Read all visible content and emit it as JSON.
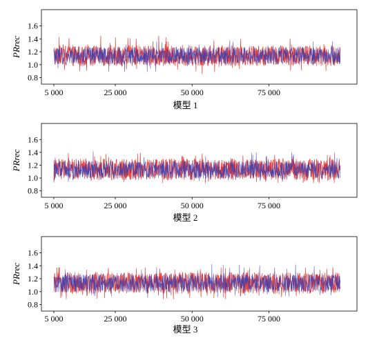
{
  "chart_data": [
    {
      "type": "line",
      "title": "模型 1",
      "xlabel": "模型 1",
      "ylabel": "PRrec",
      "x_range": [
        5000,
        100000
      ],
      "ylim": [
        0.7,
        1.85
      ],
      "xticks": [
        5000,
        25000,
        50000,
        75000
      ],
      "xtick_labels": [
        "5 000",
        "25 000",
        "50 000",
        "75 000"
      ],
      "yticks": [
        0.8,
        1.0,
        1.2,
        1.4,
        1.6
      ],
      "ytick_labels": [
        "0.8",
        "1.0",
        "1.2",
        "1.4",
        "1.6"
      ],
      "series": [
        {
          "color": "#e8302a",
          "band": [
            0.98,
            1.3
          ],
          "spike_max": 1.45,
          "spike_min": 0.85
        },
        {
          "color": "#3a3fb0",
          "band": [
            1.0,
            1.27
          ],
          "spike_max": 1.38,
          "spike_min": 0.88
        }
      ],
      "grid": false,
      "legend": "none"
    },
    {
      "type": "line",
      "title": "模型 2",
      "xlabel": "模型 2",
      "ylabel": "PRrec",
      "x_range": [
        5000,
        100000
      ],
      "ylim": [
        0.7,
        1.85
      ],
      "xticks": [
        5000,
        25000,
        50000,
        75000
      ],
      "xtick_labels": [
        "5 000",
        "25 000",
        "50 000",
        "75 000"
      ],
      "yticks": [
        0.8,
        1.0,
        1.2,
        1.4,
        1.6
      ],
      "ytick_labels": [
        "0.8",
        "1.0",
        "1.2",
        "1.4",
        "1.6"
      ],
      "series": [
        {
          "color": "#e8302a",
          "band": [
            0.97,
            1.3
          ],
          "spike_max": 1.4,
          "spike_min": 0.92
        },
        {
          "color": "#3a3fb0",
          "band": [
            0.99,
            1.27
          ],
          "spike_max": 1.42,
          "spike_min": 0.94
        }
      ],
      "grid": false,
      "legend": "none"
    },
    {
      "type": "line",
      "title": "模型 3",
      "xlabel": "模型 3",
      "ylabel": "PRrec",
      "x_range": [
        5000,
        100000
      ],
      "ylim": [
        0.7,
        1.85
      ],
      "xticks": [
        5000,
        25000,
        50000,
        75000
      ],
      "xtick_labels": [
        "5 000",
        "25 000",
        "50 000",
        "75 000"
      ],
      "yticks": [
        0.8,
        1.0,
        1.2,
        1.4,
        1.6
      ],
      "ytick_labels": [
        "0.8",
        "1.0",
        "1.2",
        "1.4",
        "1.6"
      ],
      "series": [
        {
          "color": "#e8302a",
          "band": [
            0.97,
            1.3
          ],
          "spike_max": 1.38,
          "spike_min": 0.88
        },
        {
          "color": "#3a3fb0",
          "band": [
            0.99,
            1.27
          ],
          "spike_max": 1.44,
          "spike_min": 0.9
        }
      ],
      "grid": false,
      "legend": "none"
    }
  ]
}
